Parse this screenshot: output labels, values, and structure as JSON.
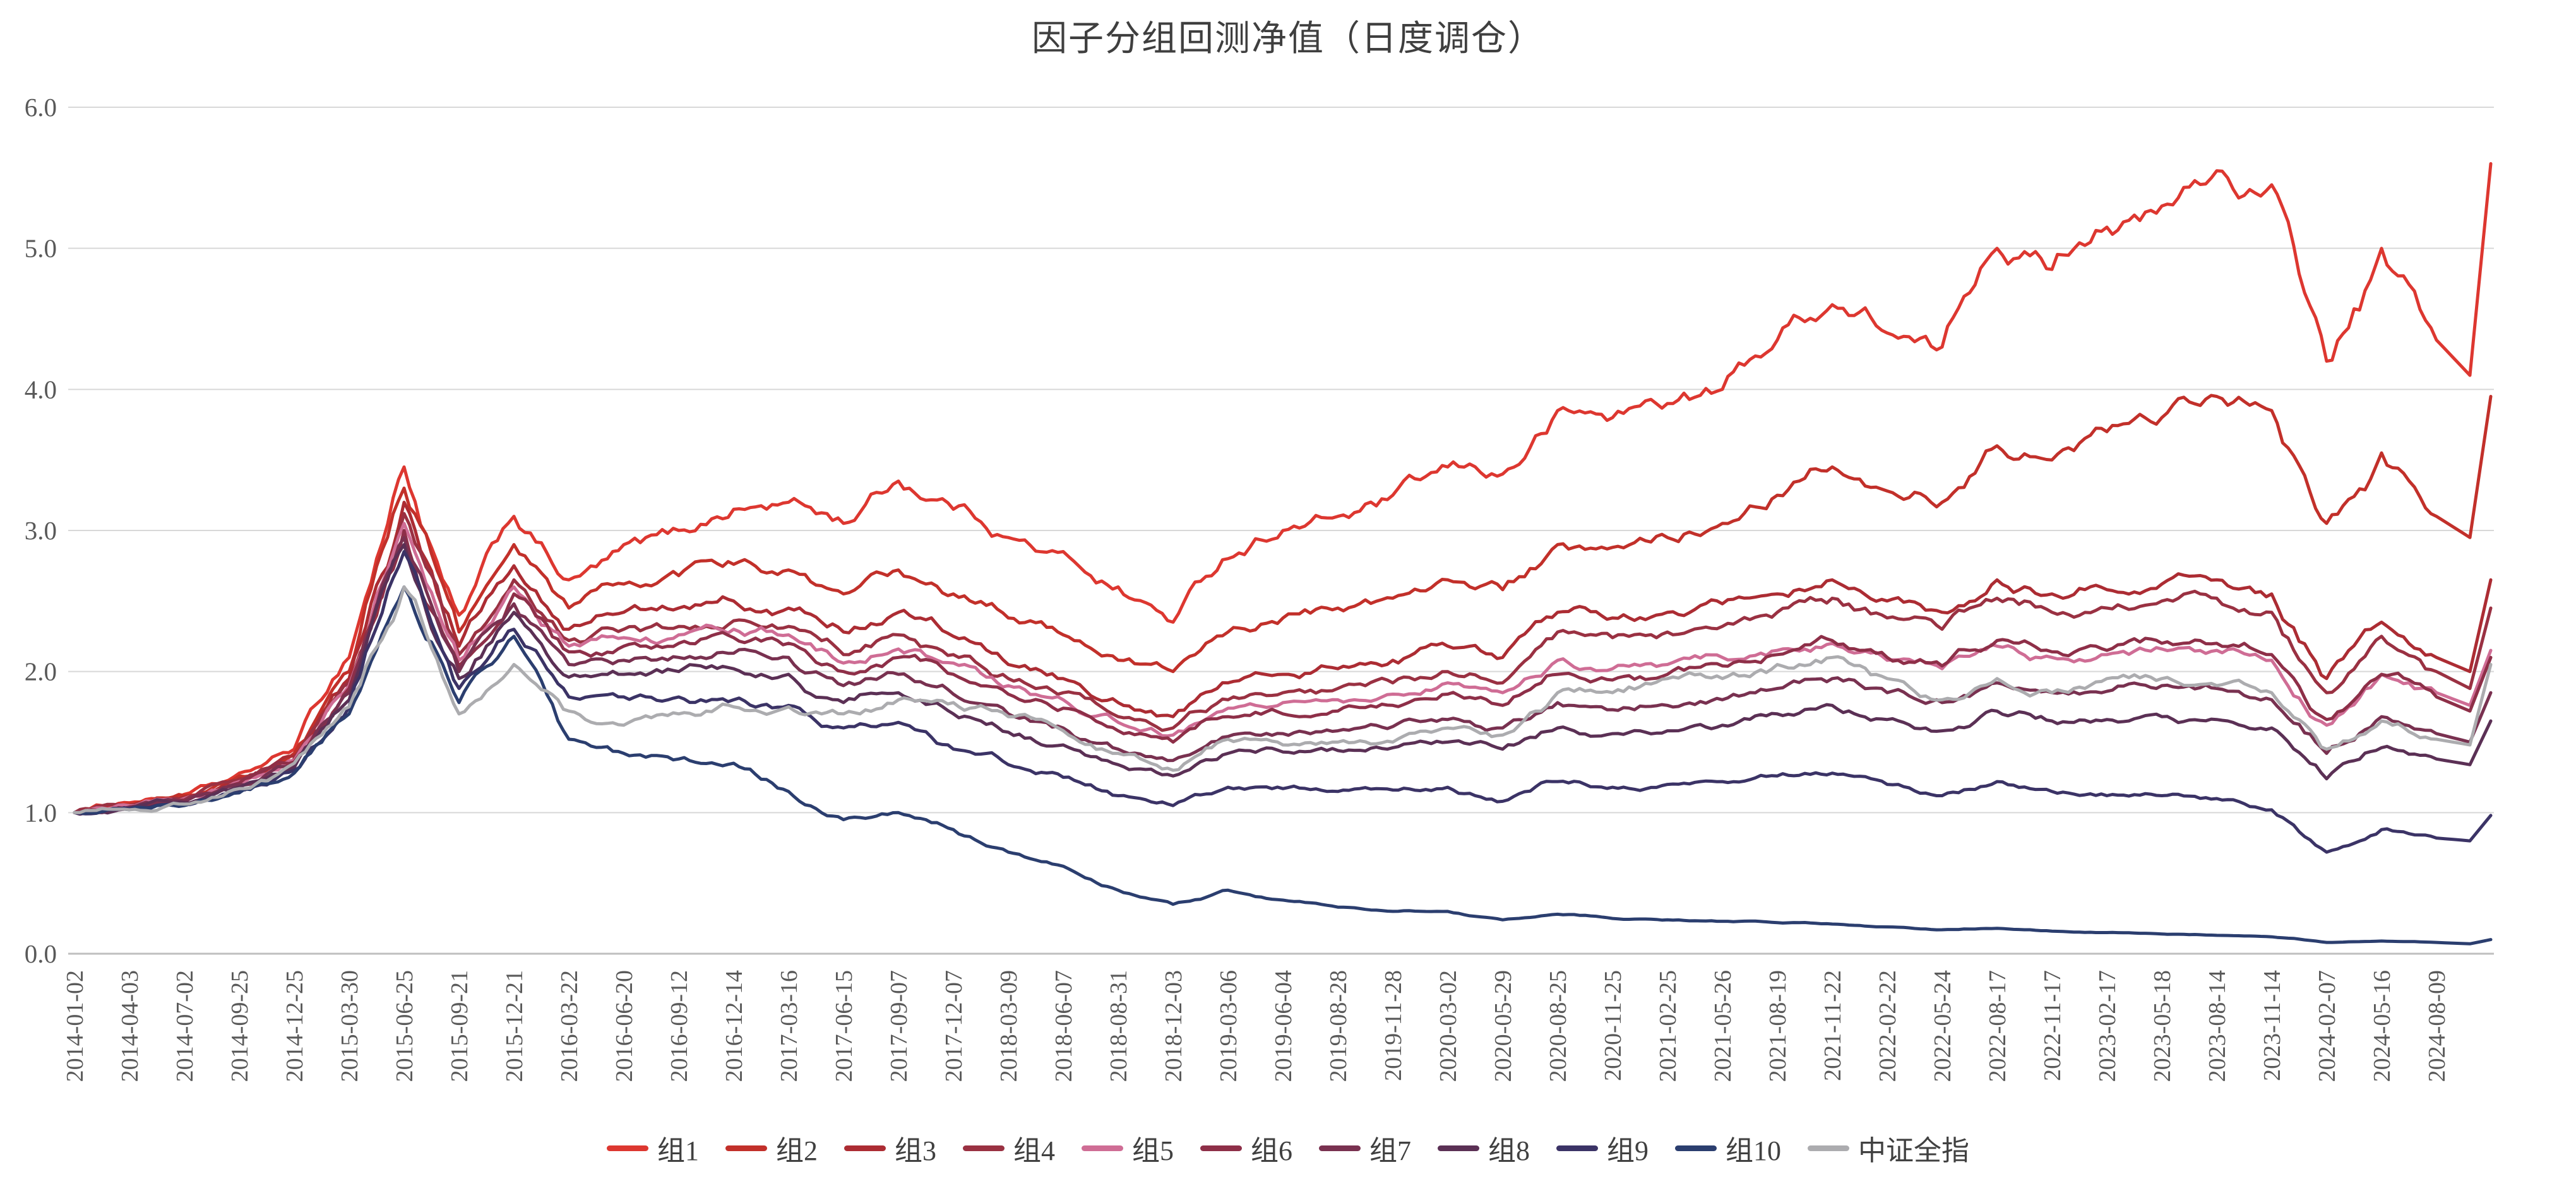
{
  "title": "因子分组回测净值（日度调仓）",
  "axis": {
    "y_tick_labels": [
      "0.0",
      "1.0",
      "2.0",
      "3.0",
      "4.0",
      "5.0",
      "6.0"
    ],
    "x_tick_labels": [
      "2014-01-02",
      "2014-04-03",
      "2014-07-02",
      "2014-09-25",
      "2014-12-25",
      "2015-03-30",
      "2015-06-25",
      "2015-09-21",
      "2015-12-21",
      "2016-03-22",
      "2016-06-20",
      "2016-09-12",
      "2016-12-14",
      "2017-03-16",
      "2017-06-15",
      "2017-09-07",
      "2017-12-07",
      "2018-03-09",
      "2018-06-07",
      "2018-08-31",
      "2018-12-03",
      "2019-03-06",
      "2019-06-04",
      "2019-08-28",
      "2019-11-28",
      "2020-03-02",
      "2020-05-29",
      "2020-08-25",
      "2020-11-25",
      "2021-02-25",
      "2021-05-26",
      "2021-08-19",
      "2021-11-22",
      "2022-02-22",
      "2022-05-24",
      "2022-08-17",
      "2022-11-17",
      "2023-02-17",
      "2023-05-18",
      "2023-08-14",
      "2023-11-14",
      "2024-02-07",
      "2024-05-16",
      "2024-08-09"
    ]
  },
  "chart_data": {
    "type": "line",
    "title": "因子分组回测净值（日度调仓）",
    "xlabel": "",
    "ylabel": "",
    "ylim": [
      0,
      6
    ],
    "y_tick_step": 1.0,
    "grid": "horizontal",
    "legend_position": "bottom",
    "x_tick_labels": [
      "2014-01-02",
      "2014-04-03",
      "2014-07-02",
      "2014-09-25",
      "2014-12-25",
      "2015-03-30",
      "2015-06-25",
      "2015-09-21",
      "2015-12-21",
      "2016-03-22",
      "2016-06-20",
      "2016-09-12",
      "2016-12-14",
      "2017-03-16",
      "2017-06-15",
      "2017-09-07",
      "2017-12-07",
      "2018-03-09",
      "2018-06-07",
      "2018-08-31",
      "2018-12-03",
      "2019-03-06",
      "2019-06-04",
      "2019-08-28",
      "2019-11-28",
      "2020-03-02",
      "2020-05-29",
      "2020-08-25",
      "2020-11-25",
      "2021-02-25",
      "2021-05-26",
      "2021-08-19",
      "2021-11-22",
      "2022-02-22",
      "2022-05-24",
      "2022-08-17",
      "2022-11-17",
      "2023-02-17",
      "2023-05-18",
      "2023-08-14",
      "2023-11-14",
      "2024-02-07",
      "2024-05-16",
      "2024-08-09"
    ],
    "sampling_note": "Net value (start=1.0) estimated from gridlines at each x tick date; the last two values of each series are the late-Sep-2024 trough and the end-of-chart spike that extend past the final tick.",
    "series": [
      {
        "name": "组1",
        "color": "#DD3730",
        "values": [
          1.0,
          1.07,
          1.13,
          1.28,
          1.45,
          2.1,
          3.45,
          2.4,
          3.1,
          2.65,
          2.9,
          3.0,
          3.15,
          3.2,
          3.05,
          3.35,
          3.15,
          2.95,
          2.85,
          2.6,
          2.35,
          2.8,
          3.0,
          3.1,
          3.25,
          3.45,
          3.4,
          3.85,
          3.8,
          3.9,
          4.0,
          4.35,
          4.6,
          4.4,
          4.3,
          5.0,
          4.85,
          5.15,
          5.3,
          5.55,
          5.45,
          4.2,
          5.0,
          4.35,
          4.1,
          5.6
        ]
      },
      {
        "name": "组2",
        "color": "#C2302A",
        "values": [
          1.0,
          1.06,
          1.12,
          1.26,
          1.42,
          2.0,
          3.3,
          2.28,
          2.9,
          2.45,
          2.62,
          2.68,
          2.76,
          2.72,
          2.55,
          2.72,
          2.55,
          2.38,
          2.26,
          2.08,
          2.0,
          2.28,
          2.38,
          2.45,
          2.52,
          2.65,
          2.58,
          2.9,
          2.88,
          2.95,
          3.05,
          3.25,
          3.45,
          3.28,
          3.2,
          3.6,
          3.5,
          3.7,
          3.8,
          3.95,
          3.85,
          3.05,
          3.55,
          3.1,
          2.95,
          3.95
        ]
      },
      {
        "name": "组3",
        "color": "#AC2C33",
        "values": [
          1.0,
          1.05,
          1.11,
          1.24,
          1.4,
          1.95,
          3.2,
          2.18,
          2.75,
          2.3,
          2.42,
          2.45,
          2.5,
          2.45,
          2.28,
          2.42,
          2.25,
          2.05,
          1.95,
          1.78,
          1.68,
          1.92,
          1.98,
          2.02,
          2.08,
          2.18,
          2.1,
          2.42,
          2.38,
          2.42,
          2.48,
          2.55,
          2.65,
          2.5,
          2.42,
          2.65,
          2.55,
          2.58,
          2.62,
          2.65,
          2.55,
          1.95,
          2.35,
          2.1,
          2.0,
          2.65
        ]
      },
      {
        "name": "组4",
        "color": "#9A3142",
        "values": [
          1.0,
          1.05,
          1.1,
          1.23,
          1.38,
          1.92,
          3.12,
          2.12,
          2.65,
          2.22,
          2.3,
          2.32,
          2.36,
          2.32,
          2.12,
          2.26,
          2.12,
          1.95,
          1.85,
          1.68,
          1.6,
          1.8,
          1.85,
          1.88,
          1.92,
          2.0,
          1.92,
          2.28,
          2.24,
          2.28,
          2.32,
          2.42,
          2.52,
          2.38,
          2.3,
          2.52,
          2.42,
          2.45,
          2.5,
          2.52,
          2.42,
          1.85,
          2.25,
          2.0,
          1.88,
          2.45
        ]
      },
      {
        "name": "组5",
        "color": "#CF6D95",
        "values": [
          1.0,
          1.05,
          1.1,
          1.22,
          1.37,
          1.9,
          3.05,
          2.08,
          2.6,
          2.18,
          2.24,
          2.26,
          2.3,
          2.26,
          2.06,
          2.16,
          2.06,
          1.9,
          1.8,
          1.64,
          1.55,
          1.74,
          1.78,
          1.8,
          1.84,
          1.92,
          1.85,
          2.08,
          2.02,
          2.05,
          2.1,
          2.15,
          2.2,
          2.08,
          2.02,
          2.18,
          2.1,
          2.12,
          2.16,
          2.15,
          2.08,
          1.62,
          1.98,
          1.85,
          1.76,
          2.15
        ]
      },
      {
        "name": "组6",
        "color": "#8E2F48",
        "values": [
          1.0,
          1.04,
          1.09,
          1.21,
          1.36,
          1.88,
          3.0,
          2.04,
          2.55,
          2.14,
          2.18,
          2.2,
          2.24,
          2.2,
          2.0,
          2.1,
          1.98,
          1.84,
          1.74,
          1.58,
          1.5,
          1.68,
          1.7,
          1.72,
          1.76,
          1.84,
          1.76,
          1.98,
          1.94,
          1.98,
          2.04,
          2.12,
          2.22,
          2.1,
          2.04,
          2.22,
          2.14,
          2.15,
          2.2,
          2.2,
          2.12,
          1.66,
          1.98,
          1.82,
          1.72,
          2.1
        ]
      },
      {
        "name": "组7",
        "color": "#793150",
        "values": [
          1.0,
          1.04,
          1.08,
          1.2,
          1.34,
          1.85,
          2.95,
          2.0,
          2.48,
          2.05,
          2.08,
          2.1,
          2.13,
          2.1,
          1.9,
          1.98,
          1.84,
          1.7,
          1.6,
          1.45,
          1.37,
          1.54,
          1.56,
          1.58,
          1.61,
          1.66,
          1.6,
          1.78,
          1.73,
          1.76,
          1.8,
          1.88,
          1.95,
          1.85,
          1.78,
          1.92,
          1.85,
          1.86,
          1.9,
          1.88,
          1.8,
          1.42,
          1.68,
          1.56,
          1.5,
          1.85
        ]
      },
      {
        "name": "组8",
        "color": "#5B3055",
        "values": [
          1.0,
          1.03,
          1.07,
          1.18,
          1.32,
          1.8,
          2.9,
          1.95,
          2.42,
          1.96,
          1.98,
          2.0,
          2.02,
          1.98,
          1.78,
          1.85,
          1.7,
          1.57,
          1.48,
          1.34,
          1.26,
          1.42,
          1.43,
          1.44,
          1.46,
          1.5,
          1.45,
          1.6,
          1.56,
          1.58,
          1.62,
          1.7,
          1.76,
          1.66,
          1.58,
          1.72,
          1.65,
          1.66,
          1.68,
          1.66,
          1.6,
          1.24,
          1.46,
          1.38,
          1.34,
          1.65
        ]
      },
      {
        "name": "组9",
        "color": "#3B3366",
        "values": [
          1.0,
          1.03,
          1.06,
          1.16,
          1.3,
          1.75,
          2.85,
          1.88,
          2.3,
          1.82,
          1.82,
          1.82,
          1.8,
          1.76,
          1.6,
          1.64,
          1.45,
          1.34,
          1.25,
          1.12,
          1.05,
          1.18,
          1.17,
          1.15,
          1.16,
          1.18,
          1.08,
          1.22,
          1.18,
          1.2,
          1.22,
          1.26,
          1.28,
          1.2,
          1.12,
          1.22,
          1.15,
          1.12,
          1.12,
          1.1,
          1.02,
          0.72,
          0.88,
          0.82,
          0.8,
          0.98
        ]
      },
      {
        "name": "组10",
        "color": "#2B3E6F",
        "values": [
          1.0,
          1.02,
          1.05,
          1.14,
          1.28,
          1.7,
          2.6,
          1.78,
          2.25,
          1.52,
          1.42,
          1.38,
          1.35,
          1.15,
          0.95,
          1.0,
          0.88,
          0.72,
          0.62,
          0.45,
          0.35,
          0.45,
          0.38,
          0.33,
          0.3,
          0.3,
          0.24,
          0.28,
          0.25,
          0.24,
          0.23,
          0.22,
          0.21,
          0.19,
          0.17,
          0.18,
          0.16,
          0.15,
          0.14,
          0.13,
          0.12,
          0.08,
          0.09,
          0.08,
          0.07,
          0.1
        ]
      },
      {
        "name": "中证全指",
        "color": "#ACACAF",
        "values": [
          1.0,
          1.02,
          1.06,
          1.17,
          1.35,
          1.75,
          2.6,
          1.7,
          2.05,
          1.72,
          1.62,
          1.7,
          1.75,
          1.75,
          1.7,
          1.8,
          1.78,
          1.68,
          1.58,
          1.42,
          1.3,
          1.52,
          1.48,
          1.5,
          1.5,
          1.6,
          1.55,
          1.85,
          1.85,
          1.95,
          1.95,
          2.05,
          2.1,
          1.95,
          1.8,
          1.95,
          1.85,
          1.95,
          1.95,
          1.9,
          1.85,
          1.45,
          1.65,
          1.52,
          1.48,
          2.05
        ]
      }
    ],
    "style": {
      "gridline_color": "#d8d8d8",
      "axis_line_color": "#bfbfbf",
      "tick_label_color": "#595959",
      "title_color": "#3f3f3f",
      "line_width": 5
    }
  }
}
